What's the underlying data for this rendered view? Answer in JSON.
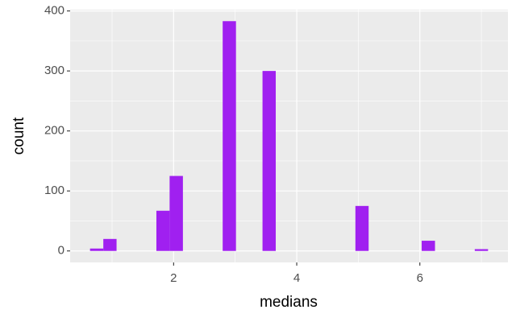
{
  "chart_data": {
    "type": "histogram",
    "x_label": "medians",
    "y_label": "count",
    "bins": [
      0.642,
      0.858,
      1.073,
      1.289,
      1.504,
      1.72,
      1.935,
      2.151,
      2.366,
      2.582,
      2.797,
      3.013,
      3.228,
      3.444,
      3.659,
      3.875,
      4.091,
      4.306,
      4.522,
      4.737,
      4.953,
      5.168,
      5.384,
      5.599,
      5.815,
      6.03,
      6.246,
      6.461,
      6.677,
      6.892,
      7.108
    ],
    "values": [
      4,
      20,
      0,
      0,
      0,
      67,
      125,
      0,
      0,
      0,
      383,
      0,
      0,
      300,
      0,
      0,
      0,
      0,
      0,
      0,
      75,
      0,
      0,
      0,
      0,
      17,
      0,
      0,
      0,
      3
    ],
    "color": "#a020f0",
    "xlim": [
      0.319,
      7.431
    ],
    "xticks": [
      2,
      4,
      6
    ],
    "ylim": [
      -19.15,
      402.15
    ],
    "yticks": [
      0,
      100,
      200,
      300,
      400
    ],
    "grid": true
  }
}
